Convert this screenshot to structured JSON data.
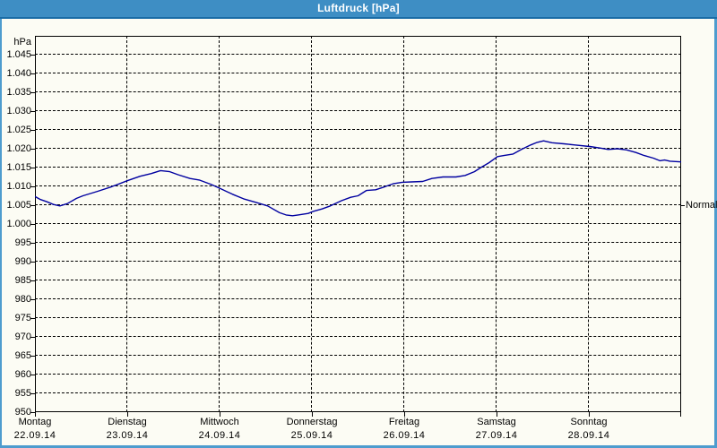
{
  "window": {
    "title": "Luftdruck [hPa]"
  },
  "colors": {
    "titlebar": "#3e8ec4",
    "titlebar_edge": "#1a6ca6",
    "frame": "#4e9cce",
    "background": "#fcfcf4",
    "grid": "#000000",
    "line": "#0000a0",
    "text": "#000000",
    "title_text": "#ffffff"
  },
  "chart_data": {
    "type": "line",
    "title": "Luftdruck [hPa]",
    "unit_label": "hPa",
    "grid": true,
    "y_axis": {
      "min": 950,
      "max": 1050,
      "tick_step": 5,
      "ticks": [
        {
          "value": 1045,
          "label": "1.045"
        },
        {
          "value": 1040,
          "label": "1.040"
        },
        {
          "value": 1035,
          "label": "1.035"
        },
        {
          "value": 1030,
          "label": "1.030"
        },
        {
          "value": 1025,
          "label": "1.025"
        },
        {
          "value": 1020,
          "label": "1.020"
        },
        {
          "value": 1015,
          "label": "1.015"
        },
        {
          "value": 1010,
          "label": "1.010"
        },
        {
          "value": 1005,
          "label": "1.005"
        },
        {
          "value": 1000,
          "label": "1.000"
        },
        {
          "value": 995,
          "label": "995"
        },
        {
          "value": 990,
          "label": "990"
        },
        {
          "value": 985,
          "label": "985"
        },
        {
          "value": 980,
          "label": "980"
        },
        {
          "value": 975,
          "label": "975"
        },
        {
          "value": 970,
          "label": "970"
        },
        {
          "value": 965,
          "label": "965"
        },
        {
          "value": 960,
          "label": "960"
        },
        {
          "value": 955,
          "label": "955"
        },
        {
          "value": 950,
          "label": "950"
        }
      ]
    },
    "x_axis": {
      "days": [
        {
          "name": "Montag",
          "date": "22.09.14"
        },
        {
          "name": "Dienstag",
          "date": "23.09.14"
        },
        {
          "name": "Mittwoch",
          "date": "24.09.14"
        },
        {
          "name": "Donnerstag",
          "date": "25.09.14"
        },
        {
          "name": "Freitag",
          "date": "26.09.14"
        },
        {
          "name": "Samstag",
          "date": "27.09.14"
        },
        {
          "name": "Sonntag",
          "date": "28.09.14"
        }
      ]
    },
    "normal_marker": {
      "label": "Normal",
      "value": 1005
    },
    "series": [
      {
        "name": "Luftdruck",
        "color": "#0000a0",
        "points_day_hpa": [
          [
            0.0,
            1007.3
          ],
          [
            0.06,
            1006.5
          ],
          [
            0.13,
            1005.9
          ],
          [
            0.2,
            1005.2
          ],
          [
            0.27,
            1004.8
          ],
          [
            0.35,
            1005.4
          ],
          [
            0.45,
            1006.8
          ],
          [
            0.52,
            1007.5
          ],
          [
            0.68,
            1008.7
          ],
          [
            0.83,
            1009.9
          ],
          [
            1.0,
            1011.5
          ],
          [
            1.14,
            1012.7
          ],
          [
            1.26,
            1013.4
          ],
          [
            1.36,
            1014.2
          ],
          [
            1.46,
            1013.9
          ],
          [
            1.55,
            1013.1
          ],
          [
            1.68,
            1012.1
          ],
          [
            1.78,
            1011.7
          ],
          [
            1.91,
            1010.5
          ],
          [
            2.01,
            1009.4
          ],
          [
            2.14,
            1007.9
          ],
          [
            2.26,
            1006.7
          ],
          [
            2.4,
            1005.7
          ],
          [
            2.52,
            1004.8
          ],
          [
            2.65,
            1003.0
          ],
          [
            2.72,
            1002.4
          ],
          [
            2.79,
            1002.2
          ],
          [
            2.85,
            1002.4
          ],
          [
            2.96,
            1002.8
          ],
          [
            3.01,
            1003.3
          ],
          [
            3.11,
            1004.0
          ],
          [
            3.2,
            1004.8
          ],
          [
            3.32,
            1006.2
          ],
          [
            3.42,
            1007.1
          ],
          [
            3.5,
            1007.5
          ],
          [
            3.59,
            1008.9
          ],
          [
            3.69,
            1009.1
          ],
          [
            3.79,
            1009.9
          ],
          [
            3.88,
            1010.7
          ],
          [
            3.98,
            1011.1
          ],
          [
            4.08,
            1011.2
          ],
          [
            4.2,
            1011.3
          ],
          [
            4.3,
            1012.1
          ],
          [
            4.42,
            1012.5
          ],
          [
            4.56,
            1012.5
          ],
          [
            4.66,
            1012.9
          ],
          [
            4.76,
            1013.9
          ],
          [
            4.83,
            1015.0
          ],
          [
            4.92,
            1016.3
          ],
          [
            5.01,
            1017.9
          ],
          [
            5.08,
            1018.2
          ],
          [
            5.18,
            1018.6
          ],
          [
            5.27,
            1019.8
          ],
          [
            5.37,
            1021.0
          ],
          [
            5.44,
            1021.7
          ],
          [
            5.51,
            1022.1
          ],
          [
            5.6,
            1021.6
          ],
          [
            5.73,
            1021.3
          ],
          [
            5.85,
            1021.0
          ],
          [
            6.01,
            1020.6
          ],
          [
            6.12,
            1020.2
          ],
          [
            6.21,
            1019.8
          ],
          [
            6.31,
            1020.0
          ],
          [
            6.41,
            1019.7
          ],
          [
            6.51,
            1019.0
          ],
          [
            6.6,
            1018.2
          ],
          [
            6.7,
            1017.5
          ],
          [
            6.77,
            1016.8
          ],
          [
            6.82,
            1017.0
          ],
          [
            6.88,
            1016.7
          ],
          [
            7.0,
            1016.5
          ]
        ]
      }
    ]
  }
}
